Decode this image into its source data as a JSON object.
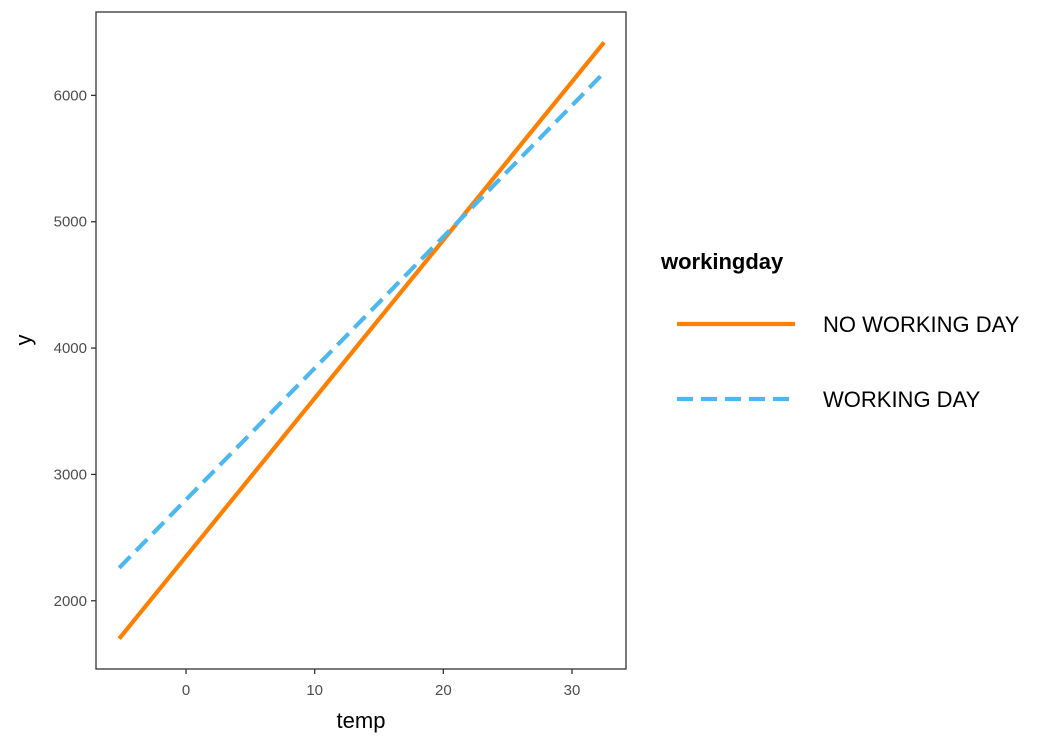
{
  "chart_data": {
    "type": "line",
    "title": "",
    "xlabel": "temp",
    "ylabel": "y",
    "xlim": [
      -7,
      34.2
    ],
    "ylim": [
      1460,
      6660
    ],
    "x_ticks": [
      0,
      10,
      20,
      30
    ],
    "y_ticks": [
      2000,
      3000,
      4000,
      5000,
      6000
    ],
    "grid": false,
    "legend": {
      "title": "workingday",
      "position": "right"
    },
    "series": [
      {
        "name": "NO WORKING DAY",
        "x": [
          -5.2,
          32.5
        ],
        "values": [
          1700,
          6420
        ],
        "color": "#FF7F00",
        "dash": "solid"
      },
      {
        "name": "WORKING DAY",
        "x": [
          -5.2,
          32.5
        ],
        "values": [
          2260,
          6180
        ],
        "color": "#4DB8F0",
        "dash": "dashed"
      }
    ]
  }
}
